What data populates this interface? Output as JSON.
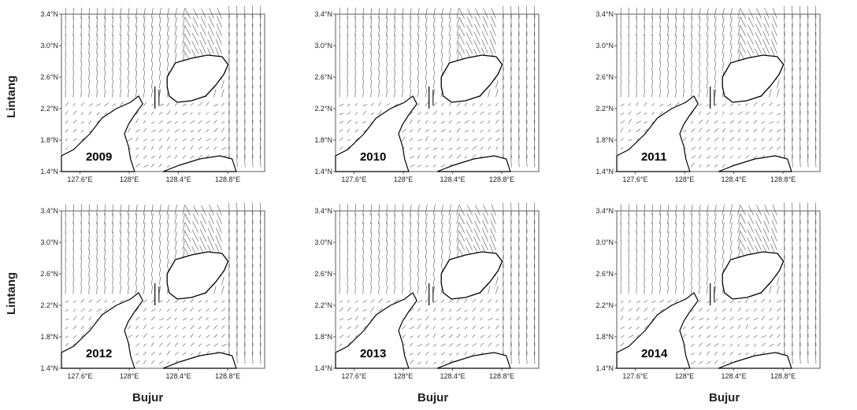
{
  "axis_titles": {
    "y": "Lintang",
    "x": "Bujur"
  },
  "lat_ticks": [
    "3.4°N",
    "3.0°N",
    "2.6°N",
    "2.2°N",
    "1.8°N",
    "1.4°N"
  ],
  "lon_ticks": [
    "127.6°E",
    "128°E",
    "128.4°E",
    "128.8°E"
  ],
  "panels": [
    {
      "year": "2009"
    },
    {
      "year": "2010"
    },
    {
      "year": "2011"
    },
    {
      "year": "2012"
    },
    {
      "year": "2013"
    },
    {
      "year": "2014"
    }
  ],
  "colors": {
    "arrow": "#555555",
    "coast": "#000000",
    "frame": "#333333"
  }
}
